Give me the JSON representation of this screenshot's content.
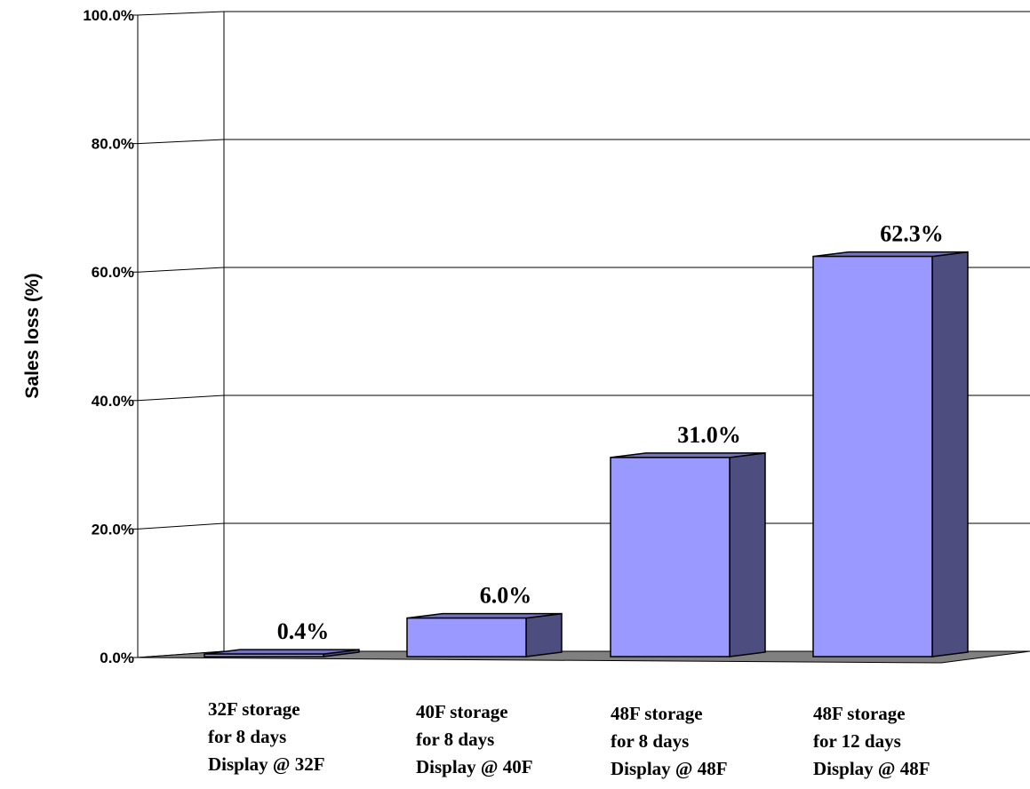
{
  "chart_data": {
    "type": "bar",
    "ylabel": "Sales loss (%)",
    "ylim": [
      0,
      100
    ],
    "yticks": [
      "0.0%",
      "20.0%",
      "40.0%",
      "60.0%",
      "80.0%",
      "100.0%"
    ],
    "grid": true,
    "style": "3d",
    "categories": [
      [
        "32F  storage",
        "for 8 days",
        "Display @ 32F"
      ],
      [
        "40F  storage",
        "for 8 days",
        "Display @ 40F"
      ],
      [
        "48F  storage",
        "for 8 days",
        "Display @ 48F"
      ],
      [
        "48F  storage",
        "for 12 days",
        "Display @ 48F"
      ]
    ],
    "values": [
      0.4,
      6.0,
      31.0,
      62.3
    ],
    "value_labels": [
      "0.4%",
      "6.0%",
      "31.0%",
      "62.3%"
    ],
    "colors": {
      "bar_front": "#9999ff",
      "bar_side": "#4d4d80",
      "bar_top": "#7373bf",
      "floor": "#808080",
      "grid": "#000000"
    }
  }
}
